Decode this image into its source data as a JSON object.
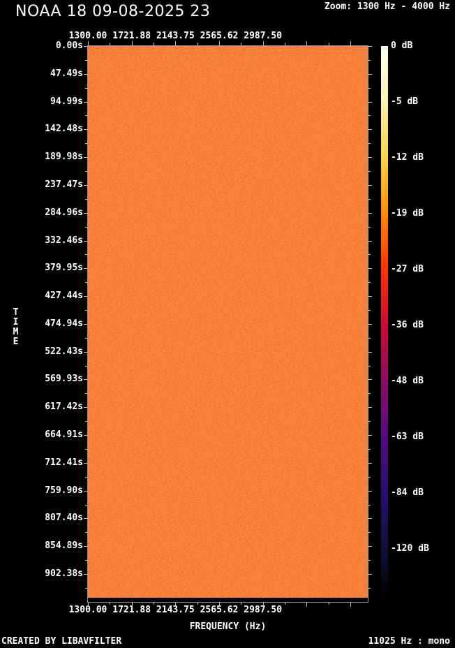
{
  "header": {
    "title": "NOAA 18 09-08-2025 23",
    "zoom_range": "Zoom: 1300 Hz - 4000 Hz"
  },
  "footer": {
    "created_by": "CREATED BY LIBAVFILTER",
    "stream_info": "11025 Hz : mono"
  },
  "chart_data": {
    "type": "heatmap",
    "title": "NOAA 18 09-08-2025 23",
    "xlabel": "FREQUENCY (Hz)",
    "ylabel": "TIME",
    "x_ticks": [
      "1300.00",
      "1721.88",
      "2143.75",
      "2565.62",
      "2987.50"
    ],
    "x_ticks_hz": [
      1300.0,
      1721.88,
      2143.75,
      2565.62,
      2987.5
    ],
    "x_range_hz": [
      1300,
      4000
    ],
    "y_ticks": [
      "0.00s",
      "47.49s",
      "94.99s",
      "142.48s",
      "189.98s",
      "237.47s",
      "284.96s",
      "332.46s",
      "379.95s",
      "427.44s",
      "474.94s",
      "522.43s",
      "569.93s",
      "617.42s",
      "664.91s",
      "712.41s",
      "759.90s",
      "807.40s",
      "854.89s",
      "902.38s"
    ],
    "y_ticks_s": [
      0.0,
      47.49,
      94.99,
      142.48,
      189.98,
      237.47,
      284.96,
      332.46,
      379.95,
      427.44,
      474.94,
      522.43,
      569.93,
      617.42,
      664.91,
      712.41,
      759.9,
      807.4,
      854.89,
      902.38
    ],
    "values_summary": "Uniform broadband orange-red noise floor of approximately -24 to -30 dB filling the whole plot (1300-4000 Hz, 0 to ~945 s); a thin black band of silence at the very bottom edge of the plot.",
    "noise_colors": {
      "base": "#f33704",
      "dark_speckle": "#dd2a00",
      "bright_speckle": "#ff5512"
    },
    "grid": false,
    "legend_position": "right-colorbar",
    "colorbar": {
      "unit": "dB",
      "labels": [
        "0 dB",
        "-5 dB",
        "-12 dB",
        "-19 dB",
        "-27 dB",
        "-36 dB",
        "-48 dB",
        "-63 dB",
        "-84 dB",
        "-120 dB"
      ],
      "values_db": [
        0,
        -5,
        -12,
        -19,
        -27,
        -36,
        -48,
        -63,
        -84,
        -120
      ],
      "stops": [
        {
          "pos": "0%",
          "color": "#fffff2"
        },
        {
          "pos": "10%",
          "color": "#fcf2b0"
        },
        {
          "pos": "20%",
          "color": "#fdd44b"
        },
        {
          "pos": "30%",
          "color": "#fe8d07"
        },
        {
          "pos": "40%",
          "color": "#fe3301"
        },
        {
          "pos": "50%",
          "color": "#ce0a30"
        },
        {
          "pos": "60%",
          "color": "#8e0c62"
        },
        {
          "pos": "70%",
          "color": "#550a80"
        },
        {
          "pos": "81%",
          "color": "#2a0e6f"
        },
        {
          "pos": "91%",
          "color": "#101038"
        },
        {
          "pos": "100%",
          "color": "#000000"
        }
      ]
    }
  }
}
